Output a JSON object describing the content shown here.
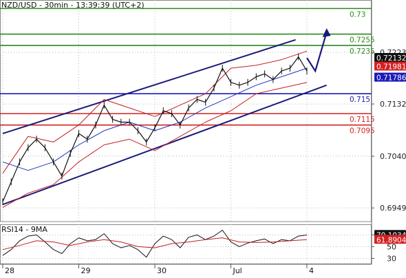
{
  "title": "NZD/USD - 30min - 13:39:39 (UTC+2)",
  "colors": {
    "resistance": "#2a8a1e",
    "support_red": "#d42020",
    "support_blue": "#1a1ab8",
    "channel": "#1a1a7a",
    "price_series": "#111111",
    "bands": "#c02020",
    "ma_blue": "#2233bb",
    "rsi_line": "#111111",
    "rsi_ma": "#c02020",
    "current_price_bg": "#111111",
    "red_tag_bg": "#d42020",
    "blue_tag_bg": "#1a1ab8",
    "grid": "#b8b8b8"
  },
  "chart_data": [
    {
      "type": "line",
      "panel": "price",
      "title": "NZD/USD - 30min - 13:39:39 (UTC+2)",
      "x_ticks": [
        "28",
        "29",
        "30",
        "Jul",
        "4"
      ],
      "y_ticks": [
        "0.7223",
        "0.7132",
        "0.7040",
        "0.6949"
      ],
      "ylim": [
        0.6925,
        0.7315
      ],
      "grid": true,
      "horizontal_levels": [
        {
          "label": "0.73",
          "value": 0.73,
          "role": "resistance"
        },
        {
          "label": "0.7255",
          "value": 0.7255,
          "role": "resistance"
        },
        {
          "label": "0.7235",
          "value": 0.7235,
          "role": "resistance"
        },
        {
          "label": "0.715",
          "value": 0.715,
          "role": "support_blue"
        },
        {
          "label": "0.7115",
          "value": 0.7115,
          "role": "support_red"
        },
        {
          "label": "0.7095",
          "value": 0.7095,
          "role": "support_red"
        }
      ],
      "price_tags": [
        {
          "label": "0.72132",
          "value": 0.72132,
          "style": "current"
        },
        {
          "label": "0.71981",
          "value": 0.71981,
          "style": "red"
        },
        {
          "label": "0.71786",
          "value": 0.71786,
          "style": "blue"
        }
      ],
      "series": [
        {
          "style": "price",
          "x": [
            0,
            3,
            6,
            9,
            12,
            15,
            18,
            21,
            24,
            27,
            30,
            33,
            36,
            39,
            42,
            45,
            48,
            51,
            54,
            57,
            60,
            63,
            66,
            69,
            72,
            75,
            78,
            81,
            84,
            87,
            90,
            93,
            96,
            99,
            102,
            105,
            108
          ],
          "values": [
            0.696,
            0.6995,
            0.703,
            0.7055,
            0.707,
            0.7055,
            0.703,
            0.7005,
            0.7045,
            0.708,
            0.707,
            0.7095,
            0.713,
            0.7105,
            0.71,
            0.71,
            0.7085,
            0.7065,
            0.709,
            0.712,
            0.7115,
            0.7095,
            0.7125,
            0.714,
            0.7135,
            0.716,
            0.7195,
            0.717,
            0.7165,
            0.717,
            0.718,
            0.7185,
            0.7175,
            0.719,
            0.7195,
            0.7215,
            0.719
          ]
        },
        {
          "style": "bands",
          "x": [
            0,
            9,
            18,
            27,
            36,
            45,
            54,
            63,
            72,
            81,
            90,
            99,
            108
          ],
          "values": [
            0.701,
            0.7075,
            0.7065,
            0.7095,
            0.714,
            0.7125,
            0.711,
            0.713,
            0.715,
            0.7195,
            0.72,
            0.721,
            0.7225
          ]
        },
        {
          "style": "bands",
          "x": [
            0,
            9,
            18,
            27,
            36,
            45,
            54,
            63,
            72,
            81,
            90,
            99,
            108
          ],
          "values": [
            0.695,
            0.6975,
            0.699,
            0.703,
            0.706,
            0.707,
            0.705,
            0.7075,
            0.71,
            0.712,
            0.715,
            0.716,
            0.717
          ]
        },
        {
          "style": "ma_blue",
          "x": [
            0,
            9,
            18,
            27,
            36,
            45,
            54,
            63,
            72,
            81,
            90,
            99,
            108
          ],
          "values": [
            0.703,
            0.7015,
            0.703,
            0.706,
            0.7085,
            0.71,
            0.7085,
            0.71,
            0.7125,
            0.7145,
            0.7165,
            0.718,
            0.7195
          ]
        }
      ],
      "channel_lines": [
        {
          "x": [
            0,
            104
          ],
          "values": [
            0.708,
            0.7245
          ]
        },
        {
          "x": [
            0,
            115
          ],
          "values": [
            0.6955,
            0.7165
          ]
        }
      ],
      "arrow": {
        "x": [
          108,
          111,
          115
        ],
        "values": [
          0.72132,
          0.719,
          0.7258
        ]
      }
    },
    {
      "type": "line",
      "panel": "rsi",
      "title": "RSI14 - 9MA",
      "y_ticks": [
        "70",
        "50",
        "30"
      ],
      "ylim": [
        20,
        88
      ],
      "value_tags": [
        {
          "label": "70.1034",
          "value": 70.1034,
          "style": "current"
        },
        {
          "label": "61.8904",
          "value": 61.8904,
          "style": "red"
        }
      ],
      "series": [
        {
          "style": "rsi_line",
          "x": [
            0,
            3,
            6,
            9,
            12,
            15,
            18,
            21,
            24,
            27,
            30,
            33,
            36,
            39,
            42,
            45,
            48,
            51,
            54,
            57,
            60,
            63,
            66,
            69,
            72,
            75,
            78,
            81,
            84,
            87,
            90,
            93,
            96,
            99,
            102,
            105,
            108
          ],
          "values": [
            35,
            45,
            60,
            68,
            70,
            58,
            45,
            38,
            55,
            65,
            60,
            62,
            72,
            55,
            48,
            52,
            45,
            32,
            55,
            68,
            62,
            48,
            66,
            70,
            62,
            68,
            78,
            58,
            50,
            56,
            60,
            63,
            55,
            62,
            60,
            68,
            70
          ]
        },
        {
          "style": "rsi_ma",
          "x": [
            0,
            6,
            12,
            18,
            24,
            30,
            36,
            42,
            48,
            54,
            60,
            66,
            72,
            78,
            84,
            90,
            96,
            102,
            108
          ],
          "values": [
            45,
            52,
            60,
            58,
            52,
            58,
            62,
            58,
            50,
            48,
            55,
            58,
            62,
            65,
            58,
            57,
            58,
            60,
            62
          ]
        }
      ]
    }
  ]
}
